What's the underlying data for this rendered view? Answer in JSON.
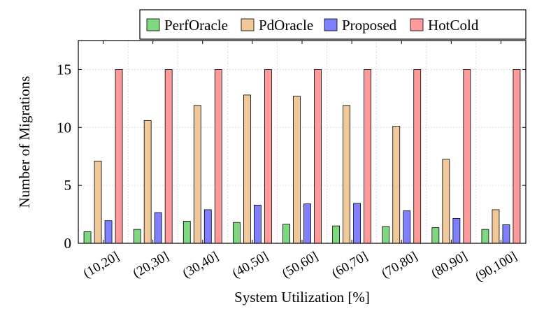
{
  "chart_data": {
    "type": "bar",
    "xlabel": "System Utilization [%]",
    "ylabel": "Number of Migrations",
    "ylim": [
      0,
      17.5
    ],
    "yticks": [
      0,
      5,
      10,
      15
    ],
    "grid": true,
    "legend_position": "top-right, above plot",
    "categories": [
      "(10,20]",
      "(20,30]",
      "(30,40]",
      "(40,50]",
      "(50,60]",
      "(60,70]",
      "(70,80]",
      "(80,90]",
      "(90,100]"
    ],
    "series": [
      {
        "name": "PerfOracle",
        "color": "#7fd87f",
        "values": [
          1.0,
          1.2,
          1.9,
          1.8,
          1.65,
          1.5,
          1.45,
          1.35,
          1.2
        ]
      },
      {
        "name": "PdOracle",
        "color": "#f0c89a",
        "values": [
          7.1,
          10.6,
          11.9,
          12.8,
          12.7,
          11.9,
          10.1,
          7.25,
          2.9
        ]
      },
      {
        "name": "Proposed",
        "color": "#7f7fff",
        "values": [
          1.95,
          2.65,
          2.9,
          3.3,
          3.4,
          3.45,
          2.8,
          2.15,
          1.6
        ]
      },
      {
        "name": "HotCold",
        "color": "#ff9a9a",
        "values": [
          15,
          15,
          15,
          15,
          15,
          15,
          15,
          15,
          15
        ]
      }
    ]
  }
}
